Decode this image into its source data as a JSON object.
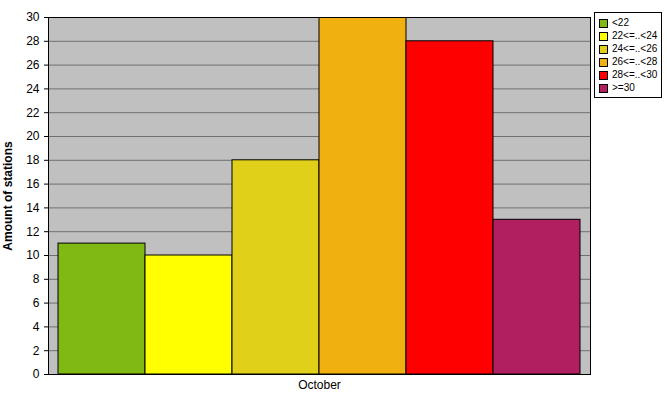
{
  "chart_data": {
    "type": "bar",
    "categories": [
      "October"
    ],
    "series": [
      {
        "name": "<22",
        "color": "#80b814",
        "values": [
          11
        ]
      },
      {
        "name": "22<=..<24",
        "color": "#ffff00",
        "values": [
          10
        ]
      },
      {
        "name": "24<=..<26",
        "color": "#e0d01a",
        "values": [
          18
        ]
      },
      {
        "name": "26<=..<28",
        "color": "#f0b010",
        "values": [
          30
        ]
      },
      {
        "name": "28<=..<30",
        "color": "#ff0000",
        "values": [
          28
        ]
      },
      {
        "name": ">=30",
        "color": "#b02060",
        "values": [
          13
        ]
      }
    ],
    "y_label": "Amount of stations",
    "ylim": [
      0,
      30
    ],
    "yticks": [
      0,
      2,
      4,
      6,
      8,
      10,
      12,
      14,
      16,
      18,
      20,
      22,
      24,
      26,
      28,
      30
    ],
    "grid": true,
    "legend": "top-right"
  }
}
